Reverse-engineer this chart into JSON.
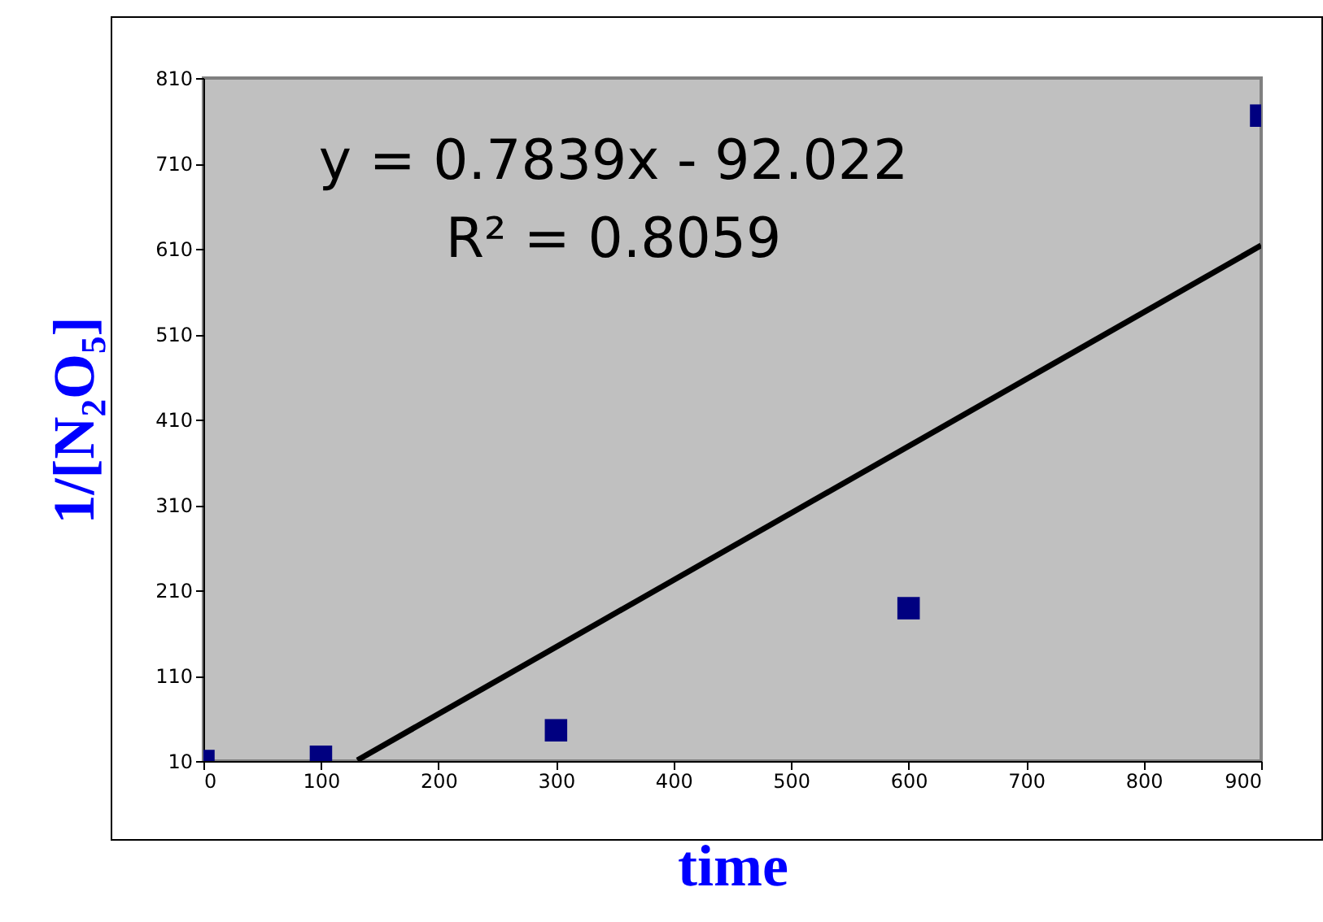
{
  "chart_data": {
    "type": "scatter",
    "xlabel": "time",
    "ylabel": "1/[N₂O₅]",
    "annotations": [
      "y = 0.7839x - 92.022",
      "R² = 0.8059"
    ],
    "xlim": [
      0,
      900
    ],
    "xticks": [
      0,
      100,
      200,
      300,
      400,
      500,
      600,
      700,
      800,
      900
    ],
    "ylim": [
      10,
      810
    ],
    "yticks": [
      10,
      110,
      210,
      310,
      410,
      510,
      610,
      710,
      810
    ],
    "grid": false,
    "series": [
      {
        "marker": "square",
        "color": "#000080",
        "x": [
          0,
          100,
          300,
          600,
          900
        ],
        "values": [
          10,
          15,
          46,
          189,
          766
        ]
      },
      {
        "type": "line",
        "color": "#000000",
        "x": [
          131,
          900
        ],
        "values": [
          11,
          614
        ]
      }
    ]
  }
}
